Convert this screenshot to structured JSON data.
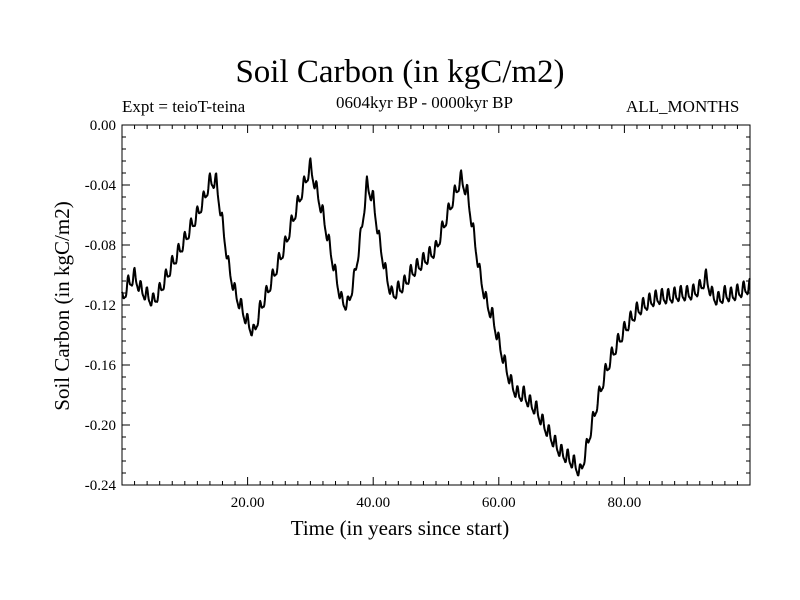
{
  "header": {
    "title": "Soil Carbon (in kgC/m2)",
    "experiment": "Expt = teioT-teina",
    "period": "0604kyr BP - 0000kyr BP",
    "months": "ALL_MONTHS"
  },
  "chart_data": {
    "type": "line",
    "title": "Soil Carbon (in kgC/m2)",
    "xlabel": "Time (in years since start)",
    "ylabel": "Soil Carbon (in kgC/m2)",
    "xlim": [
      0,
      100
    ],
    "ylim": [
      -0.24,
      0.0
    ],
    "x_ticks": [
      20,
      40,
      60,
      80
    ],
    "x_tick_labels": [
      "20.00",
      "40.00",
      "60.00",
      "80.00"
    ],
    "y_ticks": [
      0.0,
      -0.04,
      -0.08,
      -0.12,
      -0.16,
      -0.2,
      -0.24
    ],
    "y_tick_labels": [
      "0.00",
      "-0.04",
      "-0.08",
      "-0.12",
      "-0.16",
      "-0.20",
      "-0.24"
    ],
    "grid": false,
    "series": [
      {
        "name": "Soil Carbon",
        "color": "#000000",
        "trend_x": [
          0,
          1,
          2,
          3,
          4,
          5,
          6,
          7,
          8,
          9,
          10,
          11,
          12,
          13,
          14,
          15,
          16,
          17,
          18,
          19,
          20,
          21,
          22,
          23,
          24,
          25,
          26,
          27,
          28,
          29,
          30,
          31,
          32,
          33,
          34,
          35,
          36,
          37,
          38,
          39,
          40,
          41,
          42,
          43,
          44,
          45,
          46,
          47,
          48,
          49,
          50,
          51,
          52,
          53,
          54,
          55,
          56,
          57,
          58,
          59,
          60,
          61,
          62,
          63,
          64,
          65,
          66,
          67,
          68,
          69,
          70,
          71,
          72,
          73,
          74,
          75,
          76,
          77,
          78,
          79,
          80,
          81,
          82,
          83,
          84,
          85,
          86,
          87,
          88,
          89,
          90,
          91,
          92,
          93,
          94,
          95,
          96,
          97,
          98,
          99,
          100
        ],
        "trend_y": [
          -0.117,
          -0.106,
          -0.101,
          -0.11,
          -0.114,
          -0.118,
          -0.111,
          -0.102,
          -0.093,
          -0.085,
          -0.077,
          -0.068,
          -0.06,
          -0.05,
          -0.038,
          -0.038,
          -0.066,
          -0.095,
          -0.112,
          -0.122,
          -0.132,
          -0.139,
          -0.123,
          -0.113,
          -0.102,
          -0.091,
          -0.08,
          -0.066,
          -0.053,
          -0.04,
          -0.028,
          -0.044,
          -0.06,
          -0.08,
          -0.1,
          -0.118,
          -0.12,
          -0.102,
          -0.075,
          -0.04,
          -0.05,
          -0.078,
          -0.099,
          -0.114,
          -0.11,
          -0.106,
          -0.099,
          -0.095,
          -0.091,
          -0.087,
          -0.083,
          -0.07,
          -0.058,
          -0.046,
          -0.036,
          -0.046,
          -0.073,
          -0.1,
          -0.118,
          -0.128,
          -0.145,
          -0.16,
          -0.173,
          -0.18,
          -0.18,
          -0.186,
          -0.19,
          -0.199,
          -0.206,
          -0.213,
          -0.219,
          -0.222,
          -0.226,
          -0.232,
          -0.215,
          -0.197,
          -0.18,
          -0.165,
          -0.154,
          -0.145,
          -0.137,
          -0.13,
          -0.124,
          -0.121,
          -0.118,
          -0.116,
          -0.115,
          -0.115,
          -0.114,
          -0.113,
          -0.113,
          -0.112,
          -0.109,
          -0.102,
          -0.114,
          -0.117,
          -0.113,
          -0.114,
          -0.112,
          -0.11,
          -0.108
        ],
        "seasonal_amplitude": 0.006
      }
    ]
  }
}
